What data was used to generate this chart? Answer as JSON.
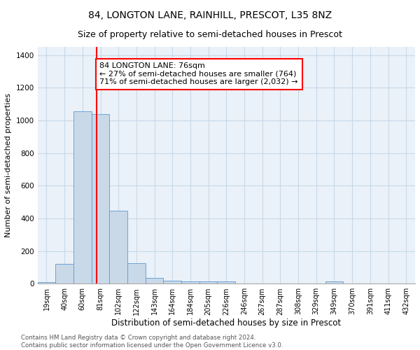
{
  "title": "84, LONGTON LANE, RAINHILL, PRESCOT, L35 8NZ",
  "subtitle": "Size of property relative to semi-detached houses in Prescot",
  "xlabel": "Distribution of semi-detached houses by size in Prescot",
  "ylabel": "Number of semi-detached properties",
  "bar_labels": [
    "19sqm",
    "40sqm",
    "60sqm",
    "81sqm",
    "102sqm",
    "122sqm",
    "143sqm",
    "164sqm",
    "184sqm",
    "205sqm",
    "226sqm",
    "246sqm",
    "267sqm",
    "287sqm",
    "308sqm",
    "329sqm",
    "349sqm",
    "370sqm",
    "391sqm",
    "411sqm",
    "432sqm"
  ],
  "bar_values": [
    10,
    120,
    1055,
    1040,
    445,
    125,
    35,
    20,
    15,
    15,
    15,
    0,
    0,
    0,
    0,
    0,
    15,
    0,
    0,
    0,
    0
  ],
  "bar_color": "#c9d9e8",
  "bar_edge_color": "#5b9bd5",
  "red_line_x": 2.78,
  "annotation_text": "84 LONGTON LANE: 76sqm\n← 27% of semi-detached houses are smaller (764)\n71% of semi-detached houses are larger (2,032) →",
  "annotation_box_color": "white",
  "annotation_box_edge_color": "red",
  "red_line_color": "red",
  "ylim": [
    0,
    1450
  ],
  "yticks": [
    0,
    200,
    400,
    600,
    800,
    1000,
    1200,
    1400
  ],
  "grid_color": "#c8d8e8",
  "background_color": "#eaf1f8",
  "footer_text": "Contains HM Land Registry data © Crown copyright and database right 2024.\nContains public sector information licensed under the Open Government Licence v3.0.",
  "title_fontsize": 10,
  "subtitle_fontsize": 9,
  "xlabel_fontsize": 8.5,
  "ylabel_fontsize": 8,
  "annotation_fontsize": 8,
  "tick_fontsize": 7,
  "ytick_fontsize": 7.5
}
